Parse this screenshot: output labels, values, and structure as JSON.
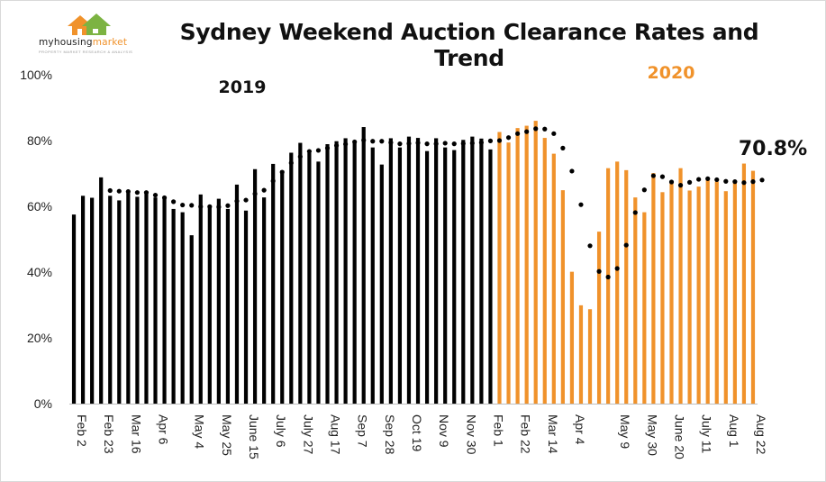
{
  "logo": {
    "name_prefix": "myhousing",
    "name_suffix": "market",
    "tagline": "PROPERTY MARKET RESEARCH & ANALYSIS"
  },
  "chart_data": {
    "type": "bar",
    "title": "Sydney Weekend Auction Clearance Rates and Trend",
    "ylim": [
      0,
      100
    ],
    "yticks": [
      "0%",
      "20%",
      "40%",
      "60%",
      "80%",
      "100%"
    ],
    "grid": false,
    "year_labels": [
      {
        "text": "2019",
        "color": "#111111"
      },
      {
        "text": "2020",
        "color": "#f0922b"
      }
    ],
    "annotation": "70.8%",
    "colors": {
      "2019": "#000000",
      "2020": "#f0922b",
      "trend": "#000000"
    },
    "xtick_labels": [
      {
        "index": 0,
        "text": "Feb 2"
      },
      {
        "index": 3,
        "text": "Feb 23"
      },
      {
        "index": 6,
        "text": "Mar 16"
      },
      {
        "index": 9,
        "text": "Apr 6"
      },
      {
        "index": 13,
        "text": "May 4"
      },
      {
        "index": 16,
        "text": "May 25"
      },
      {
        "index": 19,
        "text": "June 15"
      },
      {
        "index": 22,
        "text": "July 6"
      },
      {
        "index": 25,
        "text": "July 27"
      },
      {
        "index": 28,
        "text": "Aug 17"
      },
      {
        "index": 31,
        "text": "Sep 7"
      },
      {
        "index": 34,
        "text": "Sep 28"
      },
      {
        "index": 37,
        "text": "Oct 19"
      },
      {
        "index": 40,
        "text": "Nov 9"
      },
      {
        "index": 43,
        "text": "Nov 30"
      },
      {
        "index": 46,
        "text": "Feb 1"
      },
      {
        "index": 49,
        "text": "Feb 22"
      },
      {
        "index": 52,
        "text": "Mar 14"
      },
      {
        "index": 55,
        "text": "Apr 4"
      },
      {
        "index": 60,
        "text": "May 9"
      },
      {
        "index": 63,
        "text": "May 30"
      },
      {
        "index": 66,
        "text": "June 20"
      },
      {
        "index": 69,
        "text": "July 11"
      },
      {
        "index": 72,
        "text": "Aug 1"
      },
      {
        "index": 75,
        "text": "Aug 22"
      }
    ],
    "series": [
      {
        "name": "2019",
        "values": [
          57.5,
          63.2,
          62.6,
          68.8,
          63.2,
          61.8,
          64.1,
          62.9,
          64.6,
          62.7,
          62.2,
          59.2,
          58.2,
          51.2,
          63.6,
          59.6,
          62.3,
          59.2,
          66.6,
          58.7,
          71.3,
          62.7,
          72.9,
          70.9,
          76.3,
          79.3,
          76.2,
          73.6,
          78.9,
          79.8,
          80.7,
          79.2,
          84.1,
          77.9,
          72.7,
          80.7,
          77.9,
          81.2,
          80.8,
          76.8,
          80.7,
          77.9,
          77.1,
          80.2,
          81.2,
          80.6,
          77.3
        ]
      },
      {
        "name": "2020",
        "values": [
          82.6,
          79.4,
          83.8,
          84.5,
          86.0,
          80.8,
          76.0,
          64.9,
          40.1,
          29.9,
          28.7,
          52.3,
          71.6,
          73.6,
          71.0,
          62.7,
          58.2,
          70.1,
          64.3,
          67.2,
          71.6,
          64.8,
          66.0,
          68.0,
          67.5,
          64.6,
          67.3,
          73.0,
          70.8
        ]
      },
      {
        "name": "Trend",
        "values": [
          null,
          null,
          null,
          null,
          64.8,
          64.6,
          64.5,
          64.2,
          64.2,
          63.4,
          62.6,
          61.4,
          60.4,
          60.3,
          59.9,
          59.9,
          59.8,
          60.2,
          61.6,
          61.9,
          63.8,
          64.9,
          67.7,
          70.4,
          73.2,
          75.1,
          76.7,
          77.0,
          77.7,
          78.5,
          78.9,
          79.6,
          80.1,
          79.8,
          79.8,
          79.4,
          79.0,
          79.1,
          79.3,
          79.0,
          79.0,
          79.2,
          79.0,
          79.1,
          79.2,
          79.4,
          79.9,
          80.0,
          80.9,
          82.1,
          82.7,
          83.6,
          83.5,
          82.1,
          77.7,
          70.7,
          60.5,
          48.0,
          40.2,
          38.5,
          41.1,
          48.2,
          58.1,
          65.0,
          69.3,
          69.0,
          67.4,
          66.4,
          67.3,
          68.2,
          68.4,
          68.1,
          67.6,
          67.5,
          67.2,
          67.5,
          68.0
        ]
      }
    ]
  }
}
